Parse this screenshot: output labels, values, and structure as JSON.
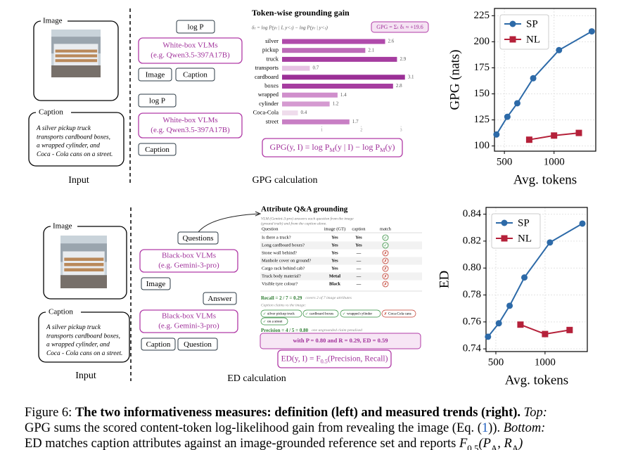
{
  "top": {
    "input": {
      "image_label": "Image",
      "caption_label": "Caption",
      "caption_lines": [
        "A silver pickup truck",
        "transports cardboard boxes,",
        "a wrapped cylinder, and",
        "Coca - Cola cans on a street."
      ],
      "label": "Input"
    },
    "pipeline": {
      "log_p_1": "log P",
      "vlm_1": [
        "White-box VLMs",
        "(e.g. Qwen3.5-397A17B)"
      ],
      "inputs_1": [
        "Image",
        "Caption"
      ],
      "log_p_2": "log P",
      "vlm_2": [
        "White-box VLMs",
        "(e.g. Qwen3.5-397A17B)"
      ],
      "inputs_2": [
        "Caption"
      ]
    },
    "delta_formula": "δₜ = log P(yₜ | I, y<ₜ) − log P(yₜ | y<ₜ)",
    "badge": "GPG = Σₜ δₜ ≈ +19.6",
    "formula": [
      {
        "t": "GPG(y, I) = log P"
      },
      {
        "sub": "M"
      },
      {
        "t": "(y | I) − log P"
      },
      {
        "sub": "M"
      },
      {
        "t": "(y)"
      }
    ],
    "label": "GPG calculation"
  },
  "bottom": {
    "input": {
      "image_label": "Image",
      "caption_label": "Caption",
      "caption_lines": [
        "A silver pickup truck",
        "transports cardboard boxes,",
        "a wrapped cylinder, and",
        "Coca - Cola cans on a street."
      ],
      "label": "Input"
    },
    "pipeline": {
      "questions": "Questions",
      "vlm_1": [
        "Black-box VLMs",
        "(e.g. Gemini-3-pro)"
      ],
      "inputs_1": [
        "Image"
      ],
      "answer": "Answer",
      "vlm_2": [
        "Black-box VLMs",
        "(e.g. Gemini-3-pro)"
      ],
      "inputs_2": [
        "Caption",
        "Question"
      ]
    },
    "qa": {
      "title": "Attribute Q&A grounding",
      "subtitle": [
        "VLM (Gemini-3-pro) answers each question from the image",
        "(ground truth) and from the caption alone."
      ],
      "columns": [
        "Question",
        "image (GT)",
        "caption",
        "match"
      ],
      "rows": [
        {
          "question": "Is there a truck?",
          "image": "Yes",
          "caption": "Yes",
          "match": "✓",
          "color": "#2e8b3a"
        },
        {
          "question": "Long cardboard boxes?",
          "image": "Yes",
          "caption": "Yes",
          "match": "✓",
          "color": "#2e8b3a"
        },
        {
          "question": "Stone wall behind?",
          "image": "Yes",
          "caption": "—",
          "match": "✗",
          "color": "#c0392b"
        },
        {
          "question": "Manhole cover on ground?",
          "image": "Yes",
          "caption": "—",
          "match": "✗",
          "color": "#c0392b"
        },
        {
          "question": "Cargo rack behind cab?",
          "image": "Yes",
          "caption": "—",
          "match": "✗",
          "color": "#c0392b"
        },
        {
          "question": "Truck body material?",
          "image": "Metal",
          "caption": "—",
          "match": "✗",
          "color": "#c0392b"
        },
        {
          "question": "Visible tyre colour?",
          "image": "Black",
          "caption": "—",
          "match": "✗",
          "color": "#c0392b"
        }
      ],
      "recall": "Recall = 2 / 7 = 0.29",
      "recall_note": "covers 2 of 7 image attributes",
      "claims_label": "Caption claims vs the image:",
      "claims": [
        {
          "text": "silver pickup truck",
          "mark": "✓",
          "color": "#2e8b3a"
        },
        {
          "text": "cardboard boxes",
          "mark": "✓",
          "color": "#2e8b3a"
        },
        {
          "text": "wrapped cylinder",
          "mark": "✓",
          "color": "#2e8b3a"
        },
        {
          "text": "Coca-Cola cans",
          "mark": "✗",
          "color": "#c0392b"
        },
        {
          "text": "on a street",
          "mark": "✓",
          "color": "#2e8b3a"
        }
      ],
      "precision": "Precision = 4 / 5 = 0.80",
      "precision_note": "one ungrounded claim penalised",
      "result": "with  P = 0.80  and  R = 0.29,      ED = 0.59"
    },
    "formula": [
      {
        "t": "ED(y, I) = F"
      },
      {
        "sub": "0.5"
      },
      {
        "t": "(Precision, Recall)"
      }
    ],
    "label": "ED calculation"
  },
  "chart_data": [
    {
      "type": "hbar",
      "title": "Token-wise grounding gain",
      "categories": [
        "silver",
        "pickup",
        "truck",
        "transports",
        "cardboard",
        "boxes",
        "wrapped",
        "cylinder",
        "Coca-Cola",
        "street"
      ],
      "values": [
        2.6,
        2.1,
        2.9,
        0.7,
        3.1,
        2.8,
        1.4,
        1.2,
        0.4,
        1.7
      ],
      "colors": [
        "#b04aab",
        "#bd6bb8",
        "#a63da0",
        "#e6c2e3",
        "#9b2f96",
        "#a63da0",
        "#d08fcc",
        "#d59ad1",
        "#efdcec",
        "#c87fc4"
      ],
      "xlim": [
        0,
        3.3
      ],
      "xticks": [
        1,
        2,
        3
      ]
    },
    {
      "type": "line",
      "xlabel": "Avg. tokens",
      "ylabel": "GPG (nats)",
      "xlim": [
        400,
        1420
      ],
      "ylim": [
        95,
        232
      ],
      "xticks": [
        500,
        1000
      ],
      "yticks": [
        100,
        125,
        150,
        175,
        200,
        225
      ],
      "grid": true,
      "legend": "upper left",
      "series": [
        {
          "name": "SP",
          "color": "#2d6aa8",
          "marker": "circle",
          "x": [
            420,
            530,
            630,
            790,
            1050,
            1380
          ],
          "values": [
            111,
            128,
            141,
            165,
            192,
            210
          ]
        },
        {
          "name": "NL",
          "color": "#b5213a",
          "marker": "square",
          "x": [
            750,
            1000,
            1250
          ],
          "values": [
            106,
            110,
            112.5
          ]
        }
      ]
    },
    {
      "type": "line",
      "xlabel": "Avg. tokens",
      "ylabel": "ED",
      "xlim": [
        400,
        1430
      ],
      "ylim": [
        0.738,
        0.845
      ],
      "xticks": [
        500,
        1000
      ],
      "yticks": [
        {
          "value": 0.74,
          "label": "0.74"
        },
        {
          "value": 0.76,
          "label": "0.76"
        },
        {
          "value": 0.78,
          "label": "0.78"
        },
        {
          "value": 0.8,
          "label": "0.80"
        },
        {
          "value": 0.82,
          "label": "0.82"
        },
        {
          "value": 0.84,
          "label": "0.84"
        }
      ],
      "grid": true,
      "legend": "upper left",
      "series": [
        {
          "name": "SP",
          "color": "#2d6aa8",
          "marker": "circle",
          "x": [
            420,
            530,
            640,
            790,
            1050,
            1380
          ],
          "values": [
            0.749,
            0.759,
            0.772,
            0.793,
            0.819,
            0.833
          ]
        },
        {
          "name": "NL",
          "color": "#b5213a",
          "marker": "square",
          "x": [
            750,
            1000,
            1250
          ],
          "values": [
            0.758,
            0.751,
            0.754
          ]
        }
      ]
    }
  ],
  "caption": {
    "lines": [
      [
        {
          "t": "Figure 6: "
        },
        {
          "bold": "The two informativeness measures: definition (left) and measured trends (right)."
        },
        {
          "italic": " Top:"
        }
      ],
      [
        {
          "t": "GPG sums the scored content-token log-likelihood gain from revealing the image (Eq. ("
        },
        {
          "link": "1"
        },
        {
          "t": "))."
        },
        {
          "italic": " Bottom:"
        }
      ],
      [
        {
          "t": "ED matches caption attributes against an image-grounded reference set and reports "
        },
        {
          "italic": "F"
        },
        {
          "sub": "0.5"
        },
        {
          "italic": "(P"
        },
        {
          "sub": "A"
        },
        {
          "italic": ", R"
        },
        {
          "sub": "A"
        },
        {
          "italic": ")"
        }
      ]
    ]
  }
}
